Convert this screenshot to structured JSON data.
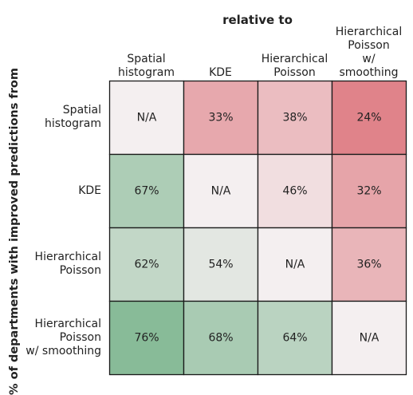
{
  "chart_data": {
    "type": "heatmap",
    "title": "relative to",
    "ylabel": "% of departments with improved predictions from",
    "columns": [
      "Spatial\nhistogram",
      "KDE",
      "Hierarchical\nPoisson",
      "Hierarchical\nPoisson\nw/ smoothing"
    ],
    "rows": [
      "Spatial\nhistogram",
      "KDE",
      "Hierarchical\nPoisson",
      "Hierarchical\nPoisson\nw/ smoothing"
    ],
    "values": [
      [
        null,
        33,
        38,
        24
      ],
      [
        67,
        null,
        46,
        32
      ],
      [
        62,
        54,
        null,
        36
      ],
      [
        76,
        68,
        64,
        null
      ]
    ],
    "cell_labels": [
      [
        "N/A",
        "33%",
        "38%",
        "24%"
      ],
      [
        "67%",
        "N/A",
        "46%",
        "32%"
      ],
      [
        "62%",
        "54%",
        "N/A",
        "36%"
      ],
      [
        "76%",
        "68%",
        "64%",
        "N/A"
      ]
    ],
    "colors": {
      "na": "#f4eff0",
      "low": "#e0838a",
      "mid": "#f4eff0",
      "high": "#88bb98",
      "grid": "#1a1a1a"
    }
  }
}
